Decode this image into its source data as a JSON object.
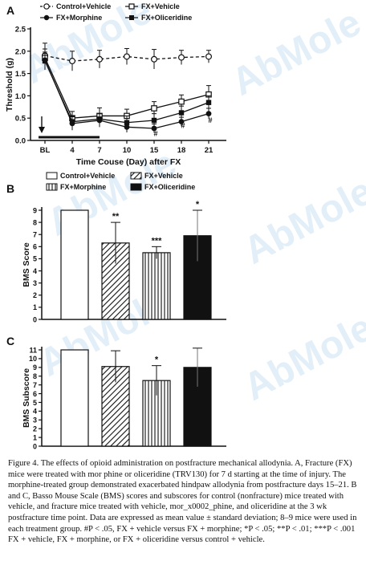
{
  "caption": "Figure 4. The effects of opioid administration on postfracture  mechanical allodynia. A, Fracture (FX) mice were treated with mor phine or oliceridine (TRV130) for 7 d starting at the time of injury. The morphine-treated group demonstrated exacerbated hindpaw allodynia from postfracture days 15–21. B and C, Basso Mouse Scale (BMS) scores and subscores for control (nonfracture) mice treated with vehicle, and fracture mice treated with vehicle, mor_x0002_phine, and oliceridine at the 3 wk postfracture time point. Data are expressed as mean value ± standard deviation; 8–9 mice were used in each treatment group. #P < .05, FX + vehicle versus FX + mor­phine; *P < .05; **P < .01; ***P < .001 FX + vehicle, FX + morphine, or FX + oliceridine versus control + vehicle.",
  "watermark": "AbMole",
  "chart_data": [
    {
      "panel": "A",
      "type": "line",
      "xlabel": "Time Couse (Day) after FX",
      "ylabel": "Threshold (g)",
      "categories": [
        "BL",
        "4",
        "7",
        "10",
        "15",
        "18",
        "21"
      ],
      "yticks": [
        "0.0",
        "0.5",
        "1.0",
        "1.5",
        "2.0",
        "2.5"
      ],
      "ylim": [
        0,
        2.5
      ],
      "arrow_at": "BL",
      "treatment_bar": [
        "BL",
        "7"
      ],
      "legend_position": "top",
      "series": [
        {
          "name": "Control+Vehicle",
          "marker": "open-circle",
          "dashed": true,
          "values": [
            1.9,
            1.78,
            1.82,
            1.88,
            1.82,
            1.86,
            1.88
          ],
          "errors": [
            0.28,
            0.22,
            0.2,
            0.18,
            0.22,
            0.16,
            0.14
          ]
        },
        {
          "name": "FX+Vehicle",
          "marker": "open-square",
          "dashed": false,
          "values": [
            1.85,
            0.5,
            0.55,
            0.55,
            0.72,
            0.87,
            1.03
          ],
          "errors": [
            0.2,
            0.15,
            0.18,
            0.15,
            0.15,
            0.15,
            0.2
          ]
        },
        {
          "name": "FX+Morphine",
          "marker": "filled-circle",
          "dashed": false,
          "values": [
            1.8,
            0.38,
            0.45,
            0.3,
            0.27,
            0.42,
            0.6
          ],
          "errors": [
            0.15,
            0.15,
            0.15,
            0.12,
            0.1,
            0.1,
            0.12
          ]
        },
        {
          "name": "FX+Oliceridine",
          "marker": "filled-square",
          "dashed": false,
          "values": [
            1.78,
            0.42,
            0.48,
            0.4,
            0.45,
            0.62,
            0.85
          ],
          "errors": [
            0.2,
            0.12,
            0.12,
            0.15,
            0.15,
            0.15,
            0.15
          ]
        }
      ],
      "annotations": [
        {
          "text": "#",
          "category": "15",
          "y": 0.1
        },
        {
          "text": "#",
          "category": "18",
          "y": 0.28
        },
        {
          "text": "#",
          "category": "21",
          "y": 0.4
        }
      ]
    },
    {
      "panel": "B",
      "type": "bar",
      "ylabel": "BMS Score",
      "yticks": [
        "0",
        "1",
        "2",
        "3",
        "4",
        "5",
        "6",
        "7",
        "8",
        "9"
      ],
      "ylim": [
        0,
        9
      ],
      "legend_position": "top",
      "series": [
        {
          "name": "Control+Vehicle",
          "pattern": "open",
          "value": 9.0,
          "error": 0,
          "sig": ""
        },
        {
          "name": "FX+Vehicle",
          "pattern": "diagonal",
          "value": 6.3,
          "error": 1.7,
          "sig": "**"
        },
        {
          "name": "FX+Morphine",
          "pattern": "vertical",
          "value": 5.5,
          "error": 0.5,
          "sig": "***"
        },
        {
          "name": "FX+Oliceridine",
          "pattern": "filled",
          "value": 6.9,
          "error": 2.1,
          "sig": "*"
        }
      ]
    },
    {
      "panel": "C",
      "type": "bar",
      "ylabel": "BMS Subscore",
      "yticks": [
        "0",
        "1",
        "2",
        "3",
        "4",
        "5",
        "6",
        "7",
        "8",
        "9",
        "10",
        "11"
      ],
      "ylim": [
        0,
        11
      ],
      "series": [
        {
          "name": "Control+Vehicle",
          "pattern": "open",
          "value": 11.0,
          "error": 0,
          "sig": ""
        },
        {
          "name": "FX+Vehicle",
          "pattern": "diagonal",
          "value": 9.1,
          "error": 1.8,
          "sig": ""
        },
        {
          "name": "FX+Morphine",
          "pattern": "vertical",
          "value": 7.5,
          "error": 1.7,
          "sig": "*"
        },
        {
          "name": "FX+Oliceridine",
          "pattern": "filled",
          "value": 9.0,
          "error": 2.2,
          "sig": ""
        }
      ]
    }
  ]
}
